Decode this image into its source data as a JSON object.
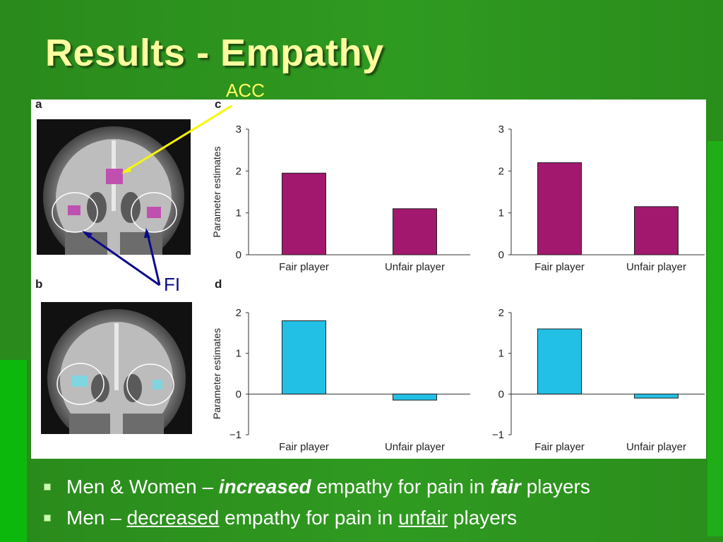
{
  "slide": {
    "title": "Results - Empathy"
  },
  "figure": {
    "panel_labels": {
      "a": "a",
      "b": "b",
      "c": "c",
      "d": "d"
    },
    "callouts": {
      "acc": "ACC",
      "fi": "FI"
    }
  },
  "chart_data": [
    {
      "type": "bar",
      "panel": "c-left",
      "categories": [
        "Fair player",
        "Unfair player"
      ],
      "values": [
        1.95,
        1.1
      ],
      "ylabel": "Parameter estimates",
      "ylim": [
        0,
        3
      ],
      "yticks": [
        0,
        1,
        2,
        3
      ],
      "color": "#a2186f"
    },
    {
      "type": "bar",
      "panel": "c-right",
      "categories": [
        "Fair player",
        "Unfair player"
      ],
      "values": [
        2.2,
        1.15
      ],
      "ylabel": "",
      "ylim": [
        0,
        3
      ],
      "yticks": [
        0,
        1,
        2,
        3
      ],
      "color": "#a2186f"
    },
    {
      "type": "bar",
      "panel": "d-left",
      "categories": [
        "Fair player",
        "Unfair player"
      ],
      "values": [
        1.8,
        -0.15
      ],
      "ylabel": "Parameter estimates",
      "ylim": [
        -1,
        2
      ],
      "yticks": [
        -1,
        0,
        1,
        2
      ],
      "color": "#23c0e6"
    },
    {
      "type": "bar",
      "panel": "d-right",
      "categories": [
        "Fair player",
        "Unfair player"
      ],
      "values": [
        1.6,
        -0.1
      ],
      "ylabel": "",
      "ylim": [
        -1,
        2
      ],
      "yticks": [
        -1,
        0,
        1,
        2
      ],
      "color": "#23c0e6"
    }
  ],
  "bullets": [
    {
      "t1": "Men & Women – ",
      "t2": "increased",
      "t3": " empathy for pain in ",
      "t4": "fair",
      "t5": " players"
    },
    {
      "t1": "Men – ",
      "t2": "decreased",
      "t3": " empathy for pain in ",
      "t4": "unfair",
      "t5": " players"
    }
  ]
}
